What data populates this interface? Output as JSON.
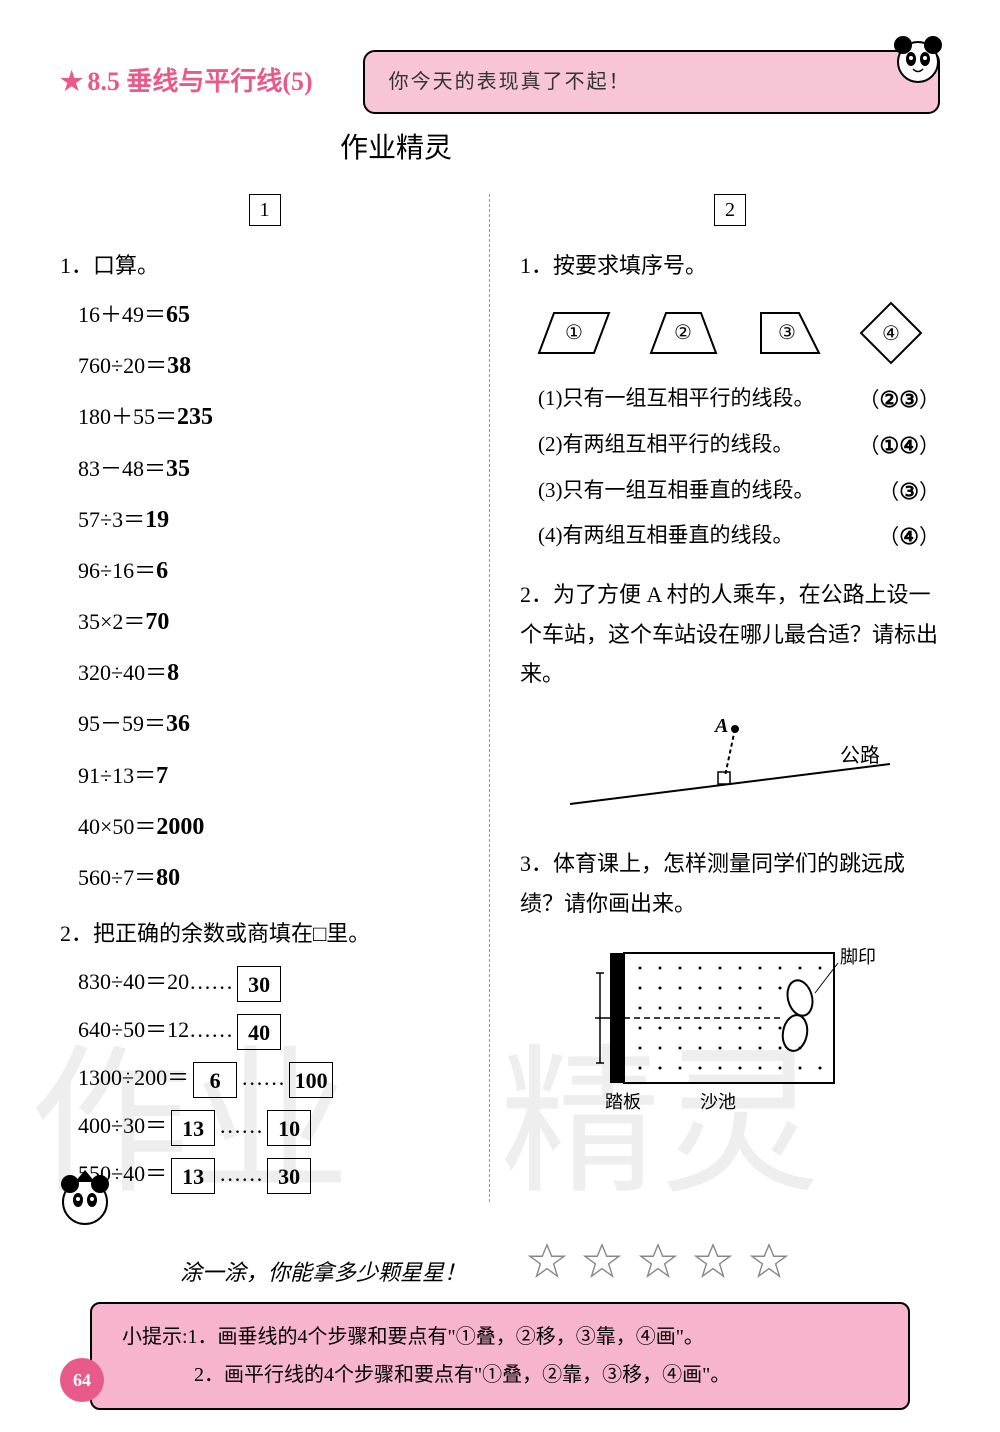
{
  "header": {
    "star": "★",
    "title": "8.5  垂线与平行线(5)",
    "banner": "你今天的表现真了不起！"
  },
  "handwrite_center": "作业精灵",
  "col1": {
    "section_num": "1",
    "q1_title": "1．口算。",
    "calcs": [
      {
        "expr": "16＋49＝",
        "ans": "65"
      },
      {
        "expr": "760÷20＝",
        "ans": "38"
      },
      {
        "expr": "180＋55＝",
        "ans": "235"
      },
      {
        "expr": "83－48＝",
        "ans": "35"
      },
      {
        "expr": "57÷3＝",
        "ans": "19"
      },
      {
        "expr": "96÷16＝",
        "ans": "6"
      },
      {
        "expr": "35×2＝",
        "ans": "70"
      },
      {
        "expr": "320÷40＝",
        "ans": "8"
      },
      {
        "expr": "95－59＝",
        "ans": "36"
      },
      {
        "expr": "91÷13＝",
        "ans": "7"
      },
      {
        "expr": "40×50＝",
        "ans": "2000"
      },
      {
        "expr": "560÷7＝",
        "ans": "80"
      }
    ],
    "q2_title": "2．把正确的余数或商填在□里。",
    "remainders": [
      {
        "expr": "830÷40＝20……",
        "box1": "30",
        "box2": ""
      },
      {
        "expr": "640÷50＝12……",
        "box1": "40",
        "box2": ""
      },
      {
        "expr": "1300÷200＝",
        "box1": "6",
        "mid": "……",
        "box2": "100"
      },
      {
        "expr": "400÷30＝",
        "box1": "13",
        "mid": "……",
        "box2": "10"
      },
      {
        "expr": "550÷40＝",
        "box1": "13",
        "mid": "……",
        "box2": "30"
      }
    ]
  },
  "col2": {
    "section_num": "2",
    "q1_title": "1．按要求填序号。",
    "shape_labels": [
      "①",
      "②",
      "③",
      "④"
    ],
    "sub_items": [
      {
        "text": "(1)只有一组互相平行的线段。",
        "ans": "②③"
      },
      {
        "text": "(2)有两组互相平行的线段。",
        "ans": "①④"
      },
      {
        "text": "(3)只有一组互相垂直的线段。",
        "ans": "③"
      },
      {
        "text": "(4)有两组互相垂直的线段。",
        "ans": "④"
      }
    ],
    "q2_title": "2．为了方便 A 村的人乘车，在公路上设一个车站，这个车站设在哪儿最合适？请标出来。",
    "road_label_A": "A",
    "road_label_road": "公路",
    "q3_title": "3．体育课上，怎样测量同学们的跳远成绩？请你画出来。",
    "sandpit_label_foot": "脚印",
    "sandpit_label_board": "踏板",
    "sandpit_label_sand": "沙池"
  },
  "rating_text": "涂一涂，你能拿多少颗星星！",
  "tips": {
    "line1": "小提示:1．画垂线的4个步骤和要点有\"①叠，②移，③靠，④画\"。",
    "line2": "2．画平行线的4个步骤和要点有\"①叠，②靠，③移，④画\"。"
  },
  "page_number": "64",
  "colors": {
    "pink": "#e85a8a",
    "banner_bg": "#f7c5d5",
    "tip_bg": "#f7b5cd"
  }
}
